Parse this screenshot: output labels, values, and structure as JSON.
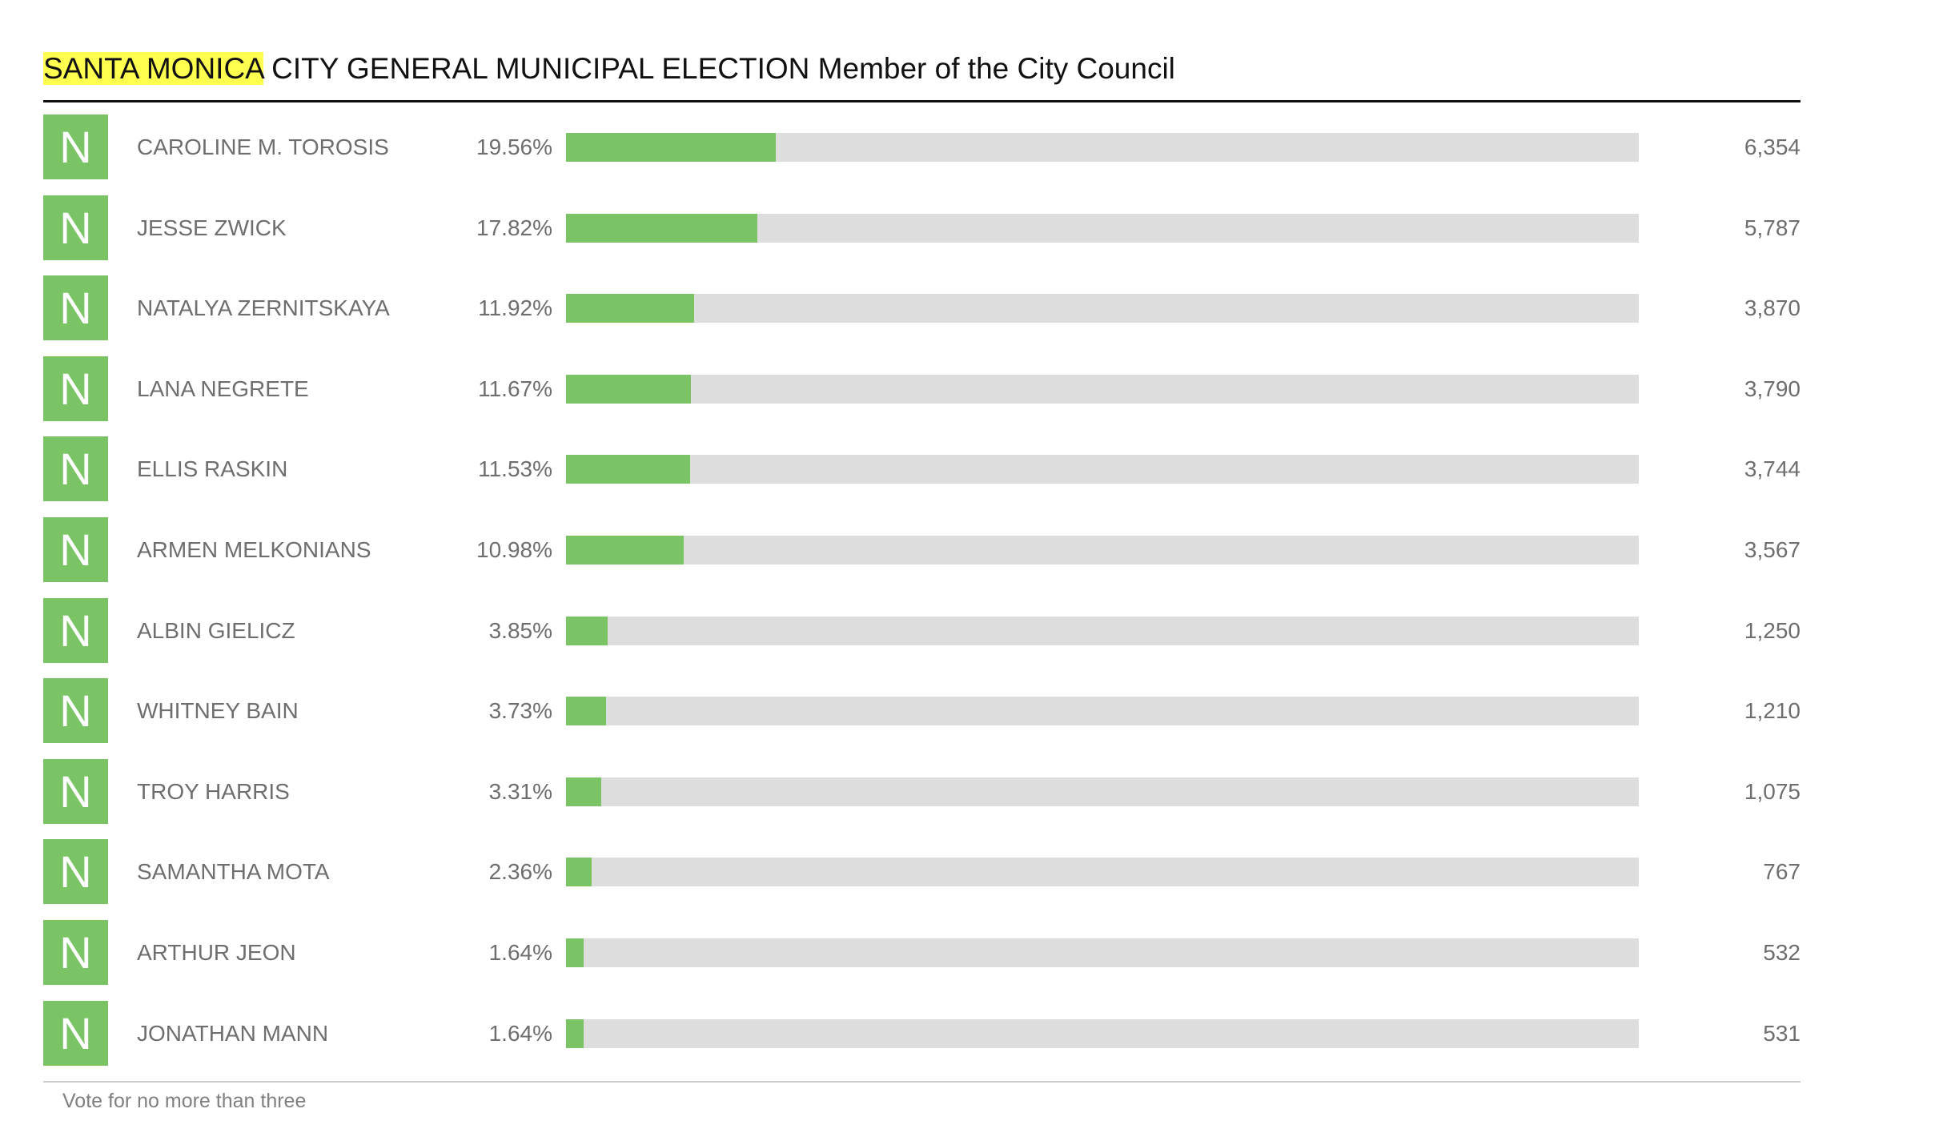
{
  "header": {
    "title_highlight": "SANTA MONICA",
    "title_rest": "CITY GENERAL MUNICIPAL ELECTION Member of the City Council"
  },
  "colors": {
    "bar_fill": "#7ac466",
    "bar_track": "#dddddd",
    "highlight": "#ffff4f"
  },
  "candidates": [
    {
      "badge": "N",
      "name": "CAROLINE M. TOROSIS",
      "pct_label": "19.56%",
      "pct": 19.56,
      "votes": "6,354"
    },
    {
      "badge": "N",
      "name": "JESSE ZWICK",
      "pct_label": "17.82%",
      "pct": 17.82,
      "votes": "5,787"
    },
    {
      "badge": "N",
      "name": "NATALYA ZERNITSKAYA",
      "pct_label": "11.92%",
      "pct": 11.92,
      "votes": "3,870"
    },
    {
      "badge": "N",
      "name": "LANA NEGRETE",
      "pct_label": "11.67%",
      "pct": 11.67,
      "votes": "3,790"
    },
    {
      "badge": "N",
      "name": "ELLIS RASKIN",
      "pct_label": "11.53%",
      "pct": 11.53,
      "votes": "3,744"
    },
    {
      "badge": "N",
      "name": "ARMEN MELKONIANS",
      "pct_label": "10.98%",
      "pct": 10.98,
      "votes": "3,567"
    },
    {
      "badge": "N",
      "name": "ALBIN GIELICZ",
      "pct_label": "3.85%",
      "pct": 3.85,
      "votes": "1,250"
    },
    {
      "badge": "N",
      "name": "WHITNEY BAIN",
      "pct_label": "3.73%",
      "pct": 3.73,
      "votes": "1,210"
    },
    {
      "badge": "N",
      "name": "TROY HARRIS",
      "pct_label": "3.31%",
      "pct": 3.31,
      "votes": "1,075"
    },
    {
      "badge": "N",
      "name": "SAMANTHA MOTA",
      "pct_label": "2.36%",
      "pct": 2.36,
      "votes": "767"
    },
    {
      "badge": "N",
      "name": "ARTHUR JEON",
      "pct_label": "1.64%",
      "pct": 1.64,
      "votes": "532"
    },
    {
      "badge": "N",
      "name": "JONATHAN MANN",
      "pct_label": "1.64%",
      "pct": 1.64,
      "votes": "531"
    }
  ],
  "footer": {
    "note": "Vote for no more than three"
  }
}
